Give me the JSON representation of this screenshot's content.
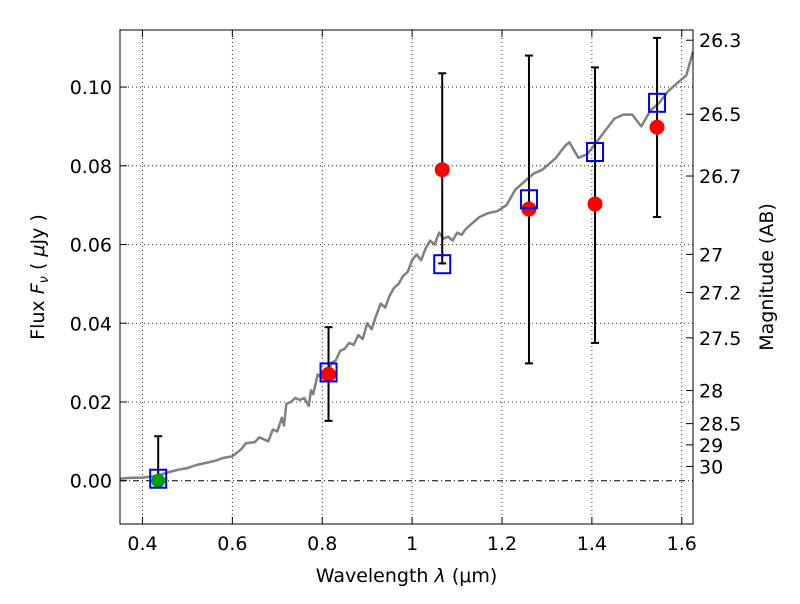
{
  "chart_data": {
    "type": "scatter",
    "xlabel_prefix": "Wavelength",
    "xlabel_symbol": "λ",
    "xlabel_unit": "(μm)",
    "ylabel_prefix": "Flux",
    "ylabel_symbol": "F",
    "ylabel_subscript": "ν",
    "ylabel_unit_open": "(",
    "ylabel_unit_mu": "μ",
    "ylabel_unit_rest": "Jy )",
    "y2label": "Magnitude (AB)",
    "xlim": [
      0.35,
      1.625
    ],
    "ylim": [
      -0.011,
      0.1145
    ],
    "grid": true,
    "x_ticks": [
      {
        "value": 0.4,
        "label": "0.4"
      },
      {
        "value": 0.6,
        "label": "0.6"
      },
      {
        "value": 0.8,
        "label": "0.8"
      },
      {
        "value": 1.0,
        "label": "1"
      },
      {
        "value": 1.2,
        "label": "1.2"
      },
      {
        "value": 1.4,
        "label": "1.4"
      },
      {
        "value": 1.6,
        "label": "1.6"
      }
    ],
    "y_ticks": [
      {
        "value": 0.0,
        "label": "0.00"
      },
      {
        "value": 0.02,
        "label": "0.02"
      },
      {
        "value": 0.04,
        "label": "0.04"
      },
      {
        "value": 0.06,
        "label": "0.06"
      },
      {
        "value": 0.08,
        "label": "0.08"
      },
      {
        "value": 0.1,
        "label": "0.10"
      }
    ],
    "mag_ticks": [
      {
        "flux": 0.1119,
        "label": "26.3"
      },
      {
        "flux": 0.0931,
        "label": "26.5"
      },
      {
        "flux": 0.0774,
        "label": "26.7"
      },
      {
        "flux": 0.0575,
        "label": "27"
      },
      {
        "flux": 0.0478,
        "label": "27.2"
      },
      {
        "flux": 0.0363,
        "label": "27.5"
      },
      {
        "flux": 0.0229,
        "label": "28"
      },
      {
        "flux": 0.0145,
        "label": "28.5"
      },
      {
        "flux": 0.0091,
        "label": "29"
      },
      {
        "flux": 0.0036,
        "label": "30"
      }
    ],
    "series": [
      {
        "kind": "model_spectrum",
        "color": "#808080",
        "x": [
          0.35,
          0.37,
          0.4,
          0.43,
          0.46,
          0.48,
          0.5,
          0.52,
          0.54,
          0.56,
          0.58,
          0.6,
          0.62,
          0.63,
          0.65,
          0.66,
          0.68,
          0.69,
          0.7,
          0.71,
          0.715,
          0.72,
          0.73,
          0.74,
          0.75,
          0.76,
          0.77,
          0.775,
          0.78,
          0.79,
          0.8,
          0.81,
          0.815,
          0.82,
          0.83,
          0.84,
          0.85,
          0.86,
          0.87,
          0.88,
          0.89,
          0.9,
          0.91,
          0.92,
          0.93,
          0.94,
          0.95,
          0.96,
          0.97,
          0.98,
          0.99,
          1.0,
          1.01,
          1.02,
          1.03,
          1.04,
          1.05,
          1.06,
          1.07,
          1.08,
          1.09,
          1.1,
          1.11,
          1.12,
          1.13,
          1.15,
          1.17,
          1.19,
          1.21,
          1.23,
          1.25,
          1.27,
          1.29,
          1.3,
          1.32,
          1.34,
          1.35,
          1.37,
          1.39,
          1.41,
          1.43,
          1.45,
          1.47,
          1.49,
          1.51,
          1.53,
          1.55,
          1.57,
          1.59,
          1.61,
          1.625
        ],
        "y": [
          0.0005,
          0.0007,
          0.0008,
          0.0012,
          0.0022,
          0.0028,
          0.0032,
          0.004,
          0.0045,
          0.005,
          0.0058,
          0.0062,
          0.008,
          0.0095,
          0.0098,
          0.011,
          0.01,
          0.013,
          0.0125,
          0.016,
          0.014,
          0.0195,
          0.02,
          0.021,
          0.0205,
          0.021,
          0.019,
          0.023,
          0.022,
          0.027,
          0.026,
          0.0285,
          0.027,
          0.03,
          0.0305,
          0.033,
          0.0335,
          0.035,
          0.0345,
          0.037,
          0.036,
          0.04,
          0.0385,
          0.042,
          0.045,
          0.044,
          0.047,
          0.049,
          0.05,
          0.052,
          0.053,
          0.056,
          0.0575,
          0.056,
          0.059,
          0.061,
          0.06,
          0.063,
          0.0615,
          0.062,
          0.061,
          0.063,
          0.0625,
          0.064,
          0.065,
          0.067,
          0.068,
          0.0685,
          0.07,
          0.074,
          0.076,
          0.078,
          0.079,
          0.08,
          0.082,
          0.085,
          0.086,
          0.082,
          0.083,
          0.086,
          0.089,
          0.092,
          0.093,
          0.093,
          0.09,
          0.094,
          0.096,
          0.099,
          0.101,
          0.103,
          0.109
        ]
      },
      {
        "kind": "synthetic_photometry",
        "marker": "square",
        "color": "#0000ee",
        "x": [
          0.435,
          0.814,
          1.067,
          1.26,
          1.407,
          1.545
        ],
        "y": [
          0.0005,
          0.0275,
          0.055,
          0.0715,
          0.0835,
          0.096
        ]
      },
      {
        "kind": "observed_detections",
        "marker": "circle",
        "color": "#ff0000",
        "x": [
          0.814,
          1.067,
          1.26,
          1.407,
          1.545
        ],
        "y": [
          0.027,
          0.079,
          0.069,
          0.0703,
          0.0898
        ],
        "yerr_low": [
          0.0152,
          0.0552,
          0.0298,
          0.035,
          0.067
        ],
        "yerr_high": [
          0.039,
          0.1035,
          0.108,
          0.105,
          0.1125
        ]
      },
      {
        "kind": "observed_nondetections",
        "marker": "circle",
        "color": "#00a000",
        "x": [
          0.814,
          0.435
        ],
        "y": [
          0.027,
          0.0
        ],
        "yerr_low": [
          null,
          -0.0015
        ],
        "yerr_high": [
          null,
          0.0113
        ]
      }
    ]
  }
}
